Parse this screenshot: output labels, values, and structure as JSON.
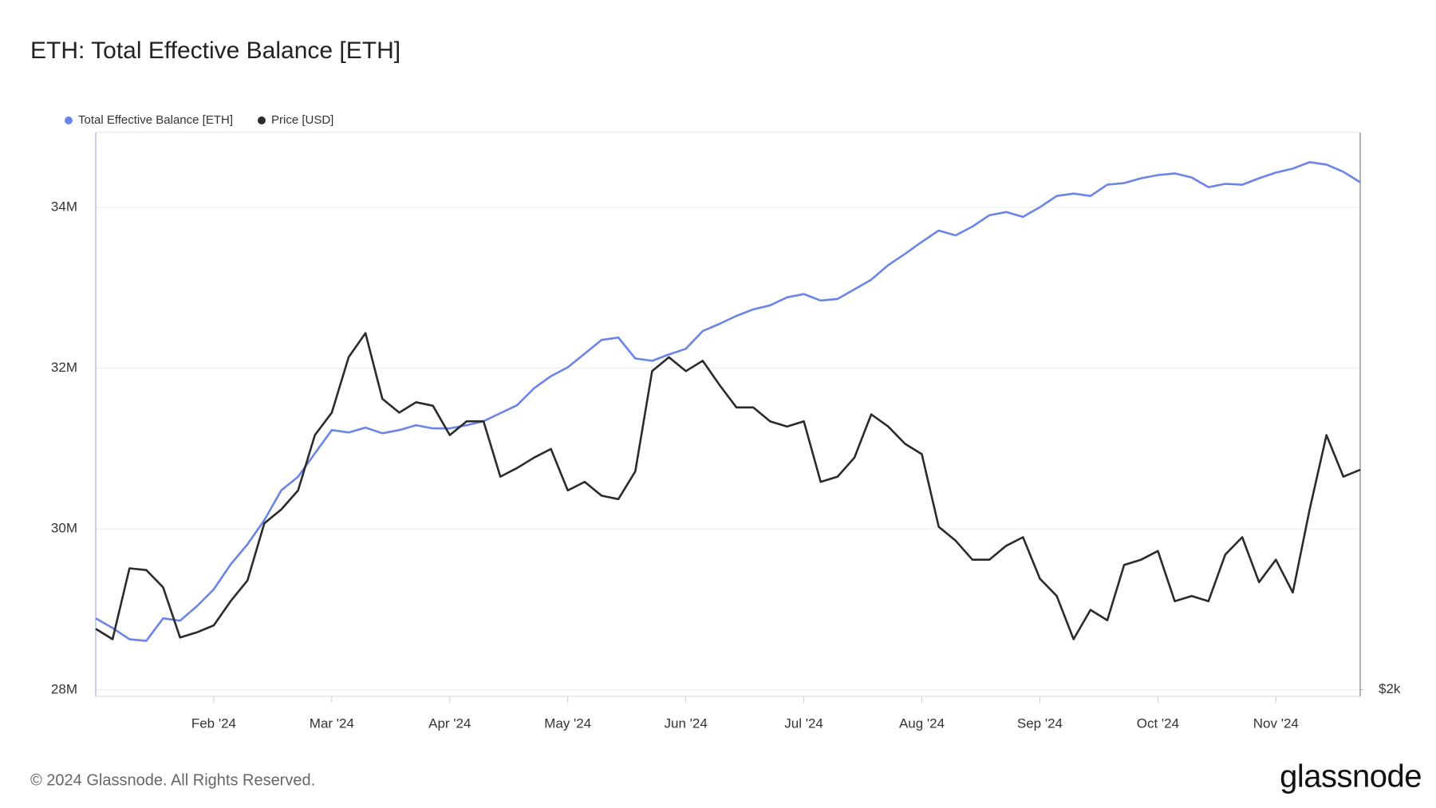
{
  "chart_data": {
    "type": "line",
    "title": "ETH: Total Effective Balance [ETH]",
    "categories": [
      null,
      null,
      null,
      null,
      null,
      null,
      null,
      "Feb '24",
      null,
      null,
      null,
      null,
      null,
      null,
      "Mar '24",
      null,
      null,
      null,
      null,
      null,
      null,
      "Apr '24",
      null,
      null,
      null,
      null,
      null,
      null,
      "May '24",
      null,
      null,
      null,
      null,
      null,
      null,
      "Jun '24",
      null,
      null,
      null,
      null,
      null,
      null,
      "Jul '24",
      null,
      null,
      null,
      null,
      null,
      null,
      "Aug '24",
      null,
      null,
      null,
      null,
      null,
      null,
      "Sep '24",
      null,
      null,
      null,
      null,
      null,
      null,
      "Oct '24",
      null,
      null,
      null,
      null,
      null,
      null,
      "Nov '24",
      null,
      null,
      null,
      null,
      null
    ],
    "series": [
      {
        "name": "Total Effective Balance [ETH]",
        "color": "#6a84e8",
        "axis": "y",
        "values": [
          28890000,
          28770000,
          28630000,
          28610000,
          28890000,
          28860000,
          29040000,
          29250000,
          29560000,
          29810000,
          30110000,
          30480000,
          30650000,
          30940000,
          31230000,
          31200000,
          31260000,
          31190000,
          31230000,
          31290000,
          31250000,
          31250000,
          31290000,
          31340000,
          31440000,
          31540000,
          31750000,
          31900000,
          32010000,
          32180000,
          32350000,
          32380000,
          32120000,
          32090000,
          32170000,
          32240000,
          32460000,
          32550000,
          32650000,
          32730000,
          32780000,
          32880000,
          32920000,
          32840000,
          32860000,
          32980000,
          33100000,
          33280000,
          33420000,
          33570000,
          33710000,
          33650000,
          33760000,
          33900000,
          33940000,
          33880000,
          34000000,
          34140000,
          34170000,
          34140000,
          34280000,
          34300000,
          34360000,
          34400000,
          34420000,
          34370000,
          34250000,
          34290000,
          34280000,
          34360000,
          34430000,
          34480000,
          34560000,
          34530000,
          34440000,
          34310000
        ]
      },
      {
        "name": "Price [USD]",
        "color": "#2b2b2b",
        "axis": "y2",
        "values": [
          2350,
          2290,
          2700,
          2690,
          2590,
          2300,
          2330,
          2370,
          2510,
          2630,
          2960,
          3040,
          3150,
          3470,
          3600,
          3920,
          4060,
          3680,
          3600,
          3660,
          3640,
          3470,
          3550,
          3550,
          3230,
          3280,
          3340,
          3390,
          3150,
          3200,
          3120,
          3100,
          3260,
          3840,
          3920,
          3840,
          3900,
          3760,
          3630,
          3630,
          3550,
          3520,
          3550,
          3200,
          3230,
          3340,
          3590,
          3520,
          3420,
          3360,
          2940,
          2860,
          2750,
          2750,
          2830,
          2880,
          2640,
          2540,
          2290,
          2460,
          2400,
          2720,
          2750,
          2800,
          2510,
          2540,
          2510,
          2780,
          2880,
          2620,
          2750,
          2560,
          3040,
          3470,
          3230,
          3270
        ]
      }
    ],
    "ylim": [
      27920000,
      34930000
    ],
    "yticks": [
      {
        "value": 28000000,
        "label": "28M"
      },
      {
        "value": 30000000,
        "label": "30M"
      },
      {
        "value": 32000000,
        "label": "32M"
      },
      {
        "value": 34000000,
        "label": "34M"
      }
    ],
    "y2lim": [
      1960,
      5220
    ],
    "y2ticks": [
      {
        "value": 2000,
        "label": "$2k"
      }
    ],
    "grid": true,
    "legend": "top-left"
  },
  "footer": {
    "copyright": "© 2024 Glassnode. All Rights Reserved.",
    "brand": "glassnode"
  }
}
